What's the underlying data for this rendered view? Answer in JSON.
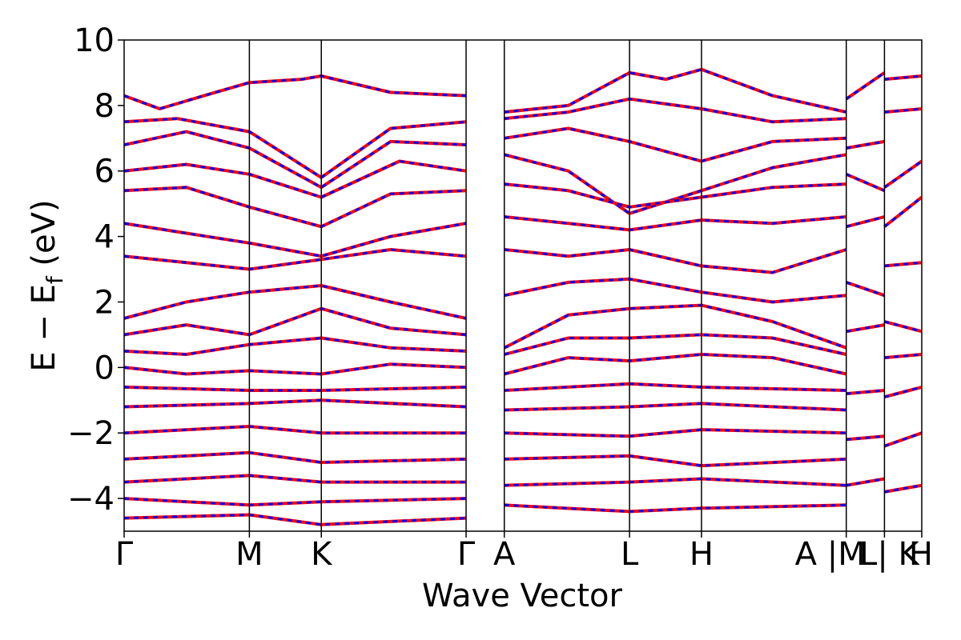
{
  "chart_data": {
    "type": "line",
    "title": "",
    "xlabel": "Wave Vector",
    "ylabel": "E − E",
    "ylabel_sub": "f",
    "ylabel_unit": " (eV)",
    "ylim": [
      -5,
      10
    ],
    "yticks": [
      {
        "value": -4,
        "label": "−4"
      },
      {
        "value": -2,
        "label": "−2"
      },
      {
        "value": 0,
        "label": "0"
      },
      {
        "value": 2,
        "label": "2"
      },
      {
        "value": 4,
        "label": "4"
      },
      {
        "value": 6,
        "label": "6"
      },
      {
        "value": 8,
        "label": "8"
      },
      {
        "value": 10,
        "label": "10"
      }
    ],
    "xlim": [
      0,
      8.98
    ],
    "kpoints": [
      {
        "label": "Γ",
        "x": 0.0
      },
      {
        "label": "M",
        "x": 1.41
      },
      {
        "label": "K",
        "x": 2.22
      },
      {
        "label": "Γ",
        "x": 3.85
      },
      {
        "label": "A",
        "x": 4.28
      },
      {
        "label": "L",
        "x": 5.69
      },
      {
        "label": "H",
        "x": 6.5
      },
      {
        "label": "A |M",
        "x": 8.13
      },
      {
        "label": "L| K",
        "x": 8.56
      },
      {
        "label": "H",
        "x": 8.98
      }
    ],
    "grid": false,
    "legend": "none",
    "colors": {
      "band_a": "#ff0000",
      "band_b": "#0000ff",
      "vline": "#000000"
    },
    "series": [
      {
        "x": [
          0.0,
          0.4,
          0.9,
          1.41,
          2.0,
          2.22,
          3.0,
          3.85
        ],
        "y": [
          8.3,
          7.9,
          8.3,
          8.7,
          8.8,
          8.9,
          8.4,
          8.3
        ]
      },
      {
        "x": [
          0.0,
          0.6,
          1.41,
          2.22,
          3.0,
          3.85
        ],
        "y": [
          7.5,
          7.6,
          7.2,
          5.8,
          7.3,
          7.5
        ]
      },
      {
        "x": [
          0.0,
          0.7,
          1.41,
          2.22,
          3.0,
          3.85
        ],
        "y": [
          6.8,
          7.2,
          6.7,
          5.5,
          6.9,
          6.8
        ]
      },
      {
        "x": [
          0.0,
          0.7,
          1.41,
          2.22,
          3.1,
          3.85
        ],
        "y": [
          6.0,
          6.2,
          5.9,
          5.2,
          6.3,
          6.0
        ]
      },
      {
        "x": [
          0.0,
          0.7,
          1.41,
          2.22,
          3.0,
          3.85
        ],
        "y": [
          5.4,
          5.5,
          4.9,
          4.3,
          5.3,
          5.4
        ]
      },
      {
        "x": [
          0.0,
          0.7,
          1.41,
          2.22,
          3.0,
          3.85
        ],
        "y": [
          4.4,
          4.1,
          3.8,
          3.4,
          4.0,
          4.4
        ]
      },
      {
        "x": [
          0.0,
          0.7,
          1.41,
          2.22,
          3.0,
          3.85
        ],
        "y": [
          3.4,
          3.2,
          3.0,
          3.3,
          3.6,
          3.4
        ]
      },
      {
        "x": [
          0.0,
          0.7,
          1.41,
          2.22,
          3.0,
          3.85
        ],
        "y": [
          1.5,
          2.0,
          2.3,
          2.5,
          2.0,
          1.5
        ]
      },
      {
        "x": [
          0.0,
          0.7,
          1.41,
          2.22,
          3.0,
          3.85
        ],
        "y": [
          1.0,
          1.3,
          1.0,
          1.8,
          1.2,
          1.0
        ]
      },
      {
        "x": [
          0.0,
          0.7,
          1.41,
          2.22,
          3.0,
          3.85
        ],
        "y": [
          0.5,
          0.4,
          0.7,
          0.9,
          0.6,
          0.5
        ]
      },
      {
        "x": [
          0.0,
          0.7,
          1.41,
          2.22,
          3.0,
          3.85
        ],
        "y": [
          0.0,
          -0.2,
          -0.1,
          -0.2,
          0.1,
          0.0
        ]
      },
      {
        "x": [
          0.0,
          1.41,
          2.22,
          3.85
        ],
        "y": [
          -0.6,
          -0.7,
          -0.7,
          -0.6
        ]
      },
      {
        "x": [
          0.0,
          1.41,
          2.22,
          3.85
        ],
        "y": [
          -1.2,
          -1.1,
          -1.0,
          -1.2
        ]
      },
      {
        "x": [
          0.0,
          1.41,
          2.22,
          3.85
        ],
        "y": [
          -2.0,
          -1.8,
          -2.0,
          -2.0
        ]
      },
      {
        "x": [
          0.0,
          1.41,
          2.22,
          3.85
        ],
        "y": [
          -2.8,
          -2.6,
          -2.9,
          -2.8
        ]
      },
      {
        "x": [
          0.0,
          1.41,
          2.22,
          3.85
        ],
        "y": [
          -3.5,
          -3.3,
          -3.5,
          -3.5
        ]
      },
      {
        "x": [
          0.0,
          1.41,
          2.22,
          3.85
        ],
        "y": [
          -4.0,
          -4.2,
          -4.1,
          -4.0
        ]
      },
      {
        "x": [
          0.0,
          1.41,
          2.22,
          3.85
        ],
        "y": [
          -4.6,
          -4.5,
          -4.8,
          -4.6
        ]
      },
      {
        "x": [
          4.28,
          5.0,
          5.69,
          6.1,
          6.5,
          7.3,
          8.13
        ],
        "y": [
          7.8,
          8.0,
          9.0,
          8.8,
          9.1,
          8.3,
          7.8
        ]
      },
      {
        "x": [
          4.28,
          5.0,
          5.69,
          6.5,
          7.3,
          8.13
        ],
        "y": [
          7.6,
          7.8,
          8.2,
          7.9,
          7.5,
          7.6
        ]
      },
      {
        "x": [
          4.28,
          5.0,
          5.69,
          6.5,
          7.3,
          8.13
        ],
        "y": [
          7.0,
          7.3,
          6.9,
          6.3,
          6.9,
          7.0
        ]
      },
      {
        "x": [
          4.28,
          5.0,
          5.69,
          6.5,
          7.3,
          8.13
        ],
        "y": [
          6.5,
          6.0,
          4.7,
          5.4,
          6.1,
          6.5
        ]
      },
      {
        "x": [
          4.28,
          5.0,
          5.69,
          6.5,
          7.3,
          8.13
        ],
        "y": [
          5.6,
          5.4,
          4.9,
          5.2,
          5.5,
          5.6
        ]
      },
      {
        "x": [
          4.28,
          5.0,
          5.69,
          6.5,
          7.3,
          8.13
        ],
        "y": [
          4.6,
          4.4,
          4.2,
          4.5,
          4.4,
          4.6
        ]
      },
      {
        "x": [
          4.28,
          5.0,
          5.69,
          6.5,
          7.3,
          8.13
        ],
        "y": [
          3.6,
          3.4,
          3.6,
          3.1,
          2.9,
          3.6
        ]
      },
      {
        "x": [
          4.28,
          5.0,
          5.69,
          6.5,
          7.3,
          8.13
        ],
        "y": [
          2.2,
          2.6,
          2.7,
          2.3,
          2.0,
          2.2
        ]
      },
      {
        "x": [
          4.28,
          5.0,
          5.69,
          6.5,
          7.3,
          8.13
        ],
        "y": [
          0.6,
          1.6,
          1.8,
          1.9,
          1.4,
          0.6
        ]
      },
      {
        "x": [
          4.28,
          5.0,
          5.69,
          6.5,
          7.3,
          8.13
        ],
        "y": [
          0.4,
          0.9,
          0.9,
          1.0,
          0.9,
          0.4
        ]
      },
      {
        "x": [
          4.28,
          5.0,
          5.69,
          6.5,
          7.3,
          8.13
        ],
        "y": [
          -0.2,
          0.3,
          0.2,
          0.4,
          0.3,
          -0.2
        ]
      },
      {
        "x": [
          4.28,
          5.69,
          6.5,
          8.13
        ],
        "y": [
          -0.7,
          -0.5,
          -0.6,
          -0.7
        ]
      },
      {
        "x": [
          4.28,
          5.69,
          6.5,
          8.13
        ],
        "y": [
          -1.3,
          -1.2,
          -1.1,
          -1.3
        ]
      },
      {
        "x": [
          4.28,
          5.69,
          6.5,
          8.13
        ],
        "y": [
          -2.0,
          -2.1,
          -1.9,
          -2.0
        ]
      },
      {
        "x": [
          4.28,
          5.69,
          6.5,
          8.13
        ],
        "y": [
          -2.8,
          -2.7,
          -3.0,
          -2.8
        ]
      },
      {
        "x": [
          4.28,
          5.69,
          6.5,
          8.13
        ],
        "y": [
          -3.6,
          -3.5,
          -3.4,
          -3.6
        ]
      },
      {
        "x": [
          4.28,
          5.69,
          6.5,
          8.13
        ],
        "y": [
          -4.2,
          -4.4,
          -4.3,
          -4.2
        ]
      },
      {
        "x": [
          8.13,
          8.56
        ],
        "y": [
          8.2,
          9.0
        ]
      },
      {
        "x": [
          8.13,
          8.56
        ],
        "y": [
          6.7,
          6.9
        ]
      },
      {
        "x": [
          8.13,
          8.56
        ],
        "y": [
          5.9,
          5.4
        ]
      },
      {
        "x": [
          8.13,
          8.56
        ],
        "y": [
          4.3,
          4.6
        ]
      },
      {
        "x": [
          8.13,
          8.56
        ],
        "y": [
          2.6,
          2.2
        ]
      },
      {
        "x": [
          8.13,
          8.56
        ],
        "y": [
          1.1,
          1.3
        ]
      },
      {
        "x": [
          8.13,
          8.56
        ],
        "y": [
          -0.8,
          -0.7
        ]
      },
      {
        "x": [
          8.13,
          8.56
        ],
        "y": [
          -2.2,
          -2.1
        ]
      },
      {
        "x": [
          8.13,
          8.56
        ],
        "y": [
          -3.6,
          -3.4
        ]
      },
      {
        "x": [
          8.56,
          8.98
        ],
        "y": [
          8.8,
          8.9
        ]
      },
      {
        "x": [
          8.56,
          8.98
        ],
        "y": [
          7.8,
          7.9
        ]
      },
      {
        "x": [
          8.56,
          8.98
        ],
        "y": [
          5.5,
          6.3
        ]
      },
      {
        "x": [
          8.56,
          8.98
        ],
        "y": [
          4.3,
          5.2
        ]
      },
      {
        "x": [
          8.56,
          8.98
        ],
        "y": [
          3.1,
          3.2
        ]
      },
      {
        "x": [
          8.56,
          8.98
        ],
        "y": [
          1.4,
          1.1
        ]
      },
      {
        "x": [
          8.56,
          8.98
        ],
        "y": [
          0.3,
          0.4
        ]
      },
      {
        "x": [
          8.56,
          8.98
        ],
        "y": [
          -0.9,
          -0.6
        ]
      },
      {
        "x": [
          8.56,
          8.98
        ],
        "y": [
          -2.4,
          -2.0
        ]
      },
      {
        "x": [
          8.56,
          8.98
        ],
        "y": [
          -3.8,
          -3.6
        ]
      }
    ]
  }
}
